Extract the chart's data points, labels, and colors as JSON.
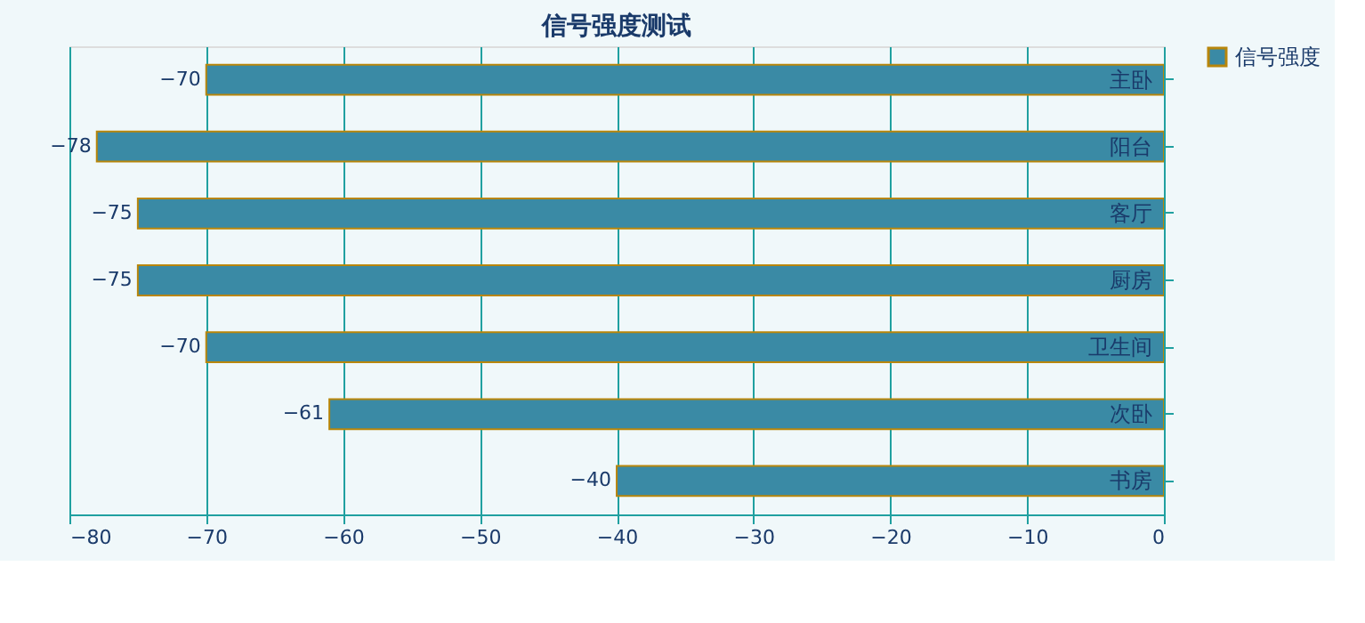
{
  "chart_data": {
    "type": "bar",
    "orientation": "horizontal",
    "title": "信号强度测试",
    "categories": [
      "主卧",
      "阳台",
      "客厅",
      "厨房",
      "卫生间",
      "次卧",
      "书房"
    ],
    "series": [
      {
        "name": "信号强度",
        "color": "#3a8aa5",
        "values": [
          -70,
          -78,
          -75,
          -75,
          -70,
          -61,
          -40
        ]
      }
    ],
    "xlim": [
      -80,
      0
    ],
    "xticks": [
      -80,
      -70,
      -60,
      -50,
      -40,
      -30,
      -20,
      -10,
      0
    ],
    "grid": "x",
    "legend": "right",
    "data_labels": true
  }
}
